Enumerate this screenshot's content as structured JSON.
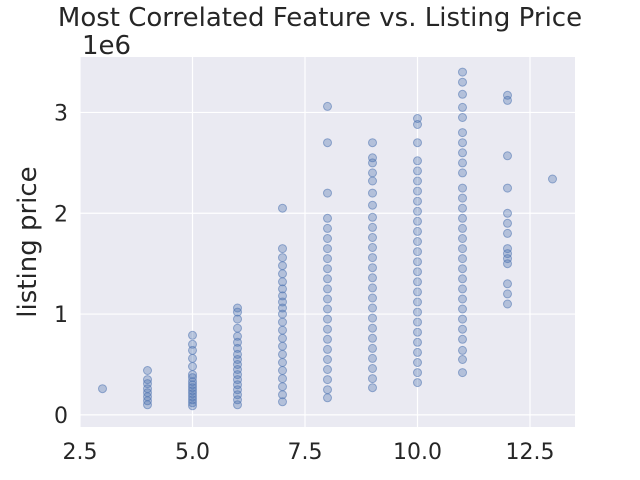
{
  "chart_data": {
    "type": "scatter",
    "title": "Most Correlated Feature vs. Listing Price",
    "xlabel": "",
    "ylabel": "listing price",
    "y_offset_label": "1e6",
    "xlim": [
      2.5,
      13.5
    ],
    "ylim": [
      -0.12,
      3.55
    ],
    "x_ticks": [
      2.5,
      5.0,
      7.5,
      10.0,
      12.5
    ],
    "x_tick_labels": [
      "2.5",
      "5.0",
      "7.5",
      "10.0",
      "12.5"
    ],
    "y_ticks": [
      0,
      1,
      2,
      3
    ],
    "y_tick_labels": [
      "0",
      "1",
      "2",
      "3"
    ],
    "grid": true,
    "marker_color": "#4c72b0",
    "marker_alpha": 0.35,
    "series": [
      {
        "points": [
          [
            3,
            0.26
          ],
          [
            4,
            0.1
          ],
          [
            4,
            0.14
          ],
          [
            4,
            0.18
          ],
          [
            4,
            0.22
          ],
          [
            4,
            0.26
          ],
          [
            4,
            0.31
          ],
          [
            4,
            0.35
          ],
          [
            4,
            0.44
          ],
          [
            5,
            0.09
          ],
          [
            5,
            0.12
          ],
          [
            5,
            0.15
          ],
          [
            5,
            0.18
          ],
          [
            5,
            0.21
          ],
          [
            5,
            0.24
          ],
          [
            5,
            0.27
          ],
          [
            5,
            0.3
          ],
          [
            5,
            0.33
          ],
          [
            5,
            0.37
          ],
          [
            5,
            0.4
          ],
          [
            5,
            0.48
          ],
          [
            5,
            0.56
          ],
          [
            5,
            0.64
          ],
          [
            5,
            0.7
          ],
          [
            5,
            0.79
          ],
          [
            6,
            0.1
          ],
          [
            6,
            0.15
          ],
          [
            6,
            0.2
          ],
          [
            6,
            0.25
          ],
          [
            6,
            0.3
          ],
          [
            6,
            0.35
          ],
          [
            6,
            0.4
          ],
          [
            6,
            0.45
          ],
          [
            6,
            0.5
          ],
          [
            6,
            0.55
          ],
          [
            6,
            0.6
          ],
          [
            6,
            0.66
          ],
          [
            6,
            0.72
          ],
          [
            6,
            0.78
          ],
          [
            6,
            0.86
          ],
          [
            6,
            0.95
          ],
          [
            6,
            1.02
          ],
          [
            6,
            1.06
          ],
          [
            7,
            0.13
          ],
          [
            7,
            0.2
          ],
          [
            7,
            0.28
          ],
          [
            7,
            0.36
          ],
          [
            7,
            0.44
          ],
          [
            7,
            0.52
          ],
          [
            7,
            0.6
          ],
          [
            7,
            0.68
          ],
          [
            7,
            0.76
          ],
          [
            7,
            0.84
          ],
          [
            7,
            0.92
          ],
          [
            7,
            1.0
          ],
          [
            7,
            1.06
          ],
          [
            7,
            1.12
          ],
          [
            7,
            1.18
          ],
          [
            7,
            1.25
          ],
          [
            7,
            1.32
          ],
          [
            7,
            1.4
          ],
          [
            7,
            1.48
          ],
          [
            7,
            1.56
          ],
          [
            7,
            1.65
          ],
          [
            7,
            2.05
          ],
          [
            8,
            0.17
          ],
          [
            8,
            0.25
          ],
          [
            8,
            0.35
          ],
          [
            8,
            0.45
          ],
          [
            8,
            0.55
          ],
          [
            8,
            0.65
          ],
          [
            8,
            0.75
          ],
          [
            8,
            0.85
          ],
          [
            8,
            0.95
          ],
          [
            8,
            1.05
          ],
          [
            8,
            1.15
          ],
          [
            8,
            1.25
          ],
          [
            8,
            1.35
          ],
          [
            8,
            1.45
          ],
          [
            8,
            1.55
          ],
          [
            8,
            1.65
          ],
          [
            8,
            1.75
          ],
          [
            8,
            1.85
          ],
          [
            8,
            1.95
          ],
          [
            8,
            2.2
          ],
          [
            8,
            2.7
          ],
          [
            8,
            3.06
          ],
          [
            9,
            0.27
          ],
          [
            9,
            0.36
          ],
          [
            9,
            0.46
          ],
          [
            9,
            0.56
          ],
          [
            9,
            0.66
          ],
          [
            9,
            0.76
          ],
          [
            9,
            0.86
          ],
          [
            9,
            0.96
          ],
          [
            9,
            1.06
          ],
          [
            9,
            1.16
          ],
          [
            9,
            1.26
          ],
          [
            9,
            1.36
          ],
          [
            9,
            1.46
          ],
          [
            9,
            1.56
          ],
          [
            9,
            1.66
          ],
          [
            9,
            1.76
          ],
          [
            9,
            1.86
          ],
          [
            9,
            1.96
          ],
          [
            9,
            2.08
          ],
          [
            9,
            2.2
          ],
          [
            9,
            2.32
          ],
          [
            9,
            2.4
          ],
          [
            9,
            2.5
          ],
          [
            9,
            2.55
          ],
          [
            9,
            2.7
          ],
          [
            10,
            0.32
          ],
          [
            10,
            0.42
          ],
          [
            10,
            0.52
          ],
          [
            10,
            0.62
          ],
          [
            10,
            0.72
          ],
          [
            10,
            0.82
          ],
          [
            10,
            0.92
          ],
          [
            10,
            1.02
          ],
          [
            10,
            1.12
          ],
          [
            10,
            1.22
          ],
          [
            10,
            1.32
          ],
          [
            10,
            1.42
          ],
          [
            10,
            1.52
          ],
          [
            10,
            1.62
          ],
          [
            10,
            1.72
          ],
          [
            10,
            1.82
          ],
          [
            10,
            1.92
          ],
          [
            10,
            2.02
          ],
          [
            10,
            2.12
          ],
          [
            10,
            2.22
          ],
          [
            10,
            2.32
          ],
          [
            10,
            2.42
          ],
          [
            10,
            2.52
          ],
          [
            10,
            2.7
          ],
          [
            10,
            2.88
          ],
          [
            10,
            2.94
          ],
          [
            11,
            0.42
          ],
          [
            11,
            0.55
          ],
          [
            11,
            0.64
          ],
          [
            11,
            0.75
          ],
          [
            11,
            0.85
          ],
          [
            11,
            0.95
          ],
          [
            11,
            1.05
          ],
          [
            11,
            1.15
          ],
          [
            11,
            1.25
          ],
          [
            11,
            1.35
          ],
          [
            11,
            1.45
          ],
          [
            11,
            1.55
          ],
          [
            11,
            1.65
          ],
          [
            11,
            1.75
          ],
          [
            11,
            1.85
          ],
          [
            11,
            1.95
          ],
          [
            11,
            2.05
          ],
          [
            11,
            2.15
          ],
          [
            11,
            2.25
          ],
          [
            11,
            2.4
          ],
          [
            11,
            2.5
          ],
          [
            11,
            2.6
          ],
          [
            11,
            2.7
          ],
          [
            11,
            2.8
          ],
          [
            11,
            2.95
          ],
          [
            11,
            3.05
          ],
          [
            11,
            3.18
          ],
          [
            11,
            3.3
          ],
          [
            11,
            3.4
          ],
          [
            12,
            1.1
          ],
          [
            12,
            1.2
          ],
          [
            12,
            1.3
          ],
          [
            12,
            1.5
          ],
          [
            12,
            1.55
          ],
          [
            12,
            1.6
          ],
          [
            12,
            1.65
          ],
          [
            12,
            1.8
          ],
          [
            12,
            1.9
          ],
          [
            12,
            2.0
          ],
          [
            12,
            2.25
          ],
          [
            12,
            2.57
          ],
          [
            12,
            3.12
          ],
          [
            12,
            3.17
          ],
          [
            13,
            2.34
          ]
        ]
      }
    ]
  }
}
